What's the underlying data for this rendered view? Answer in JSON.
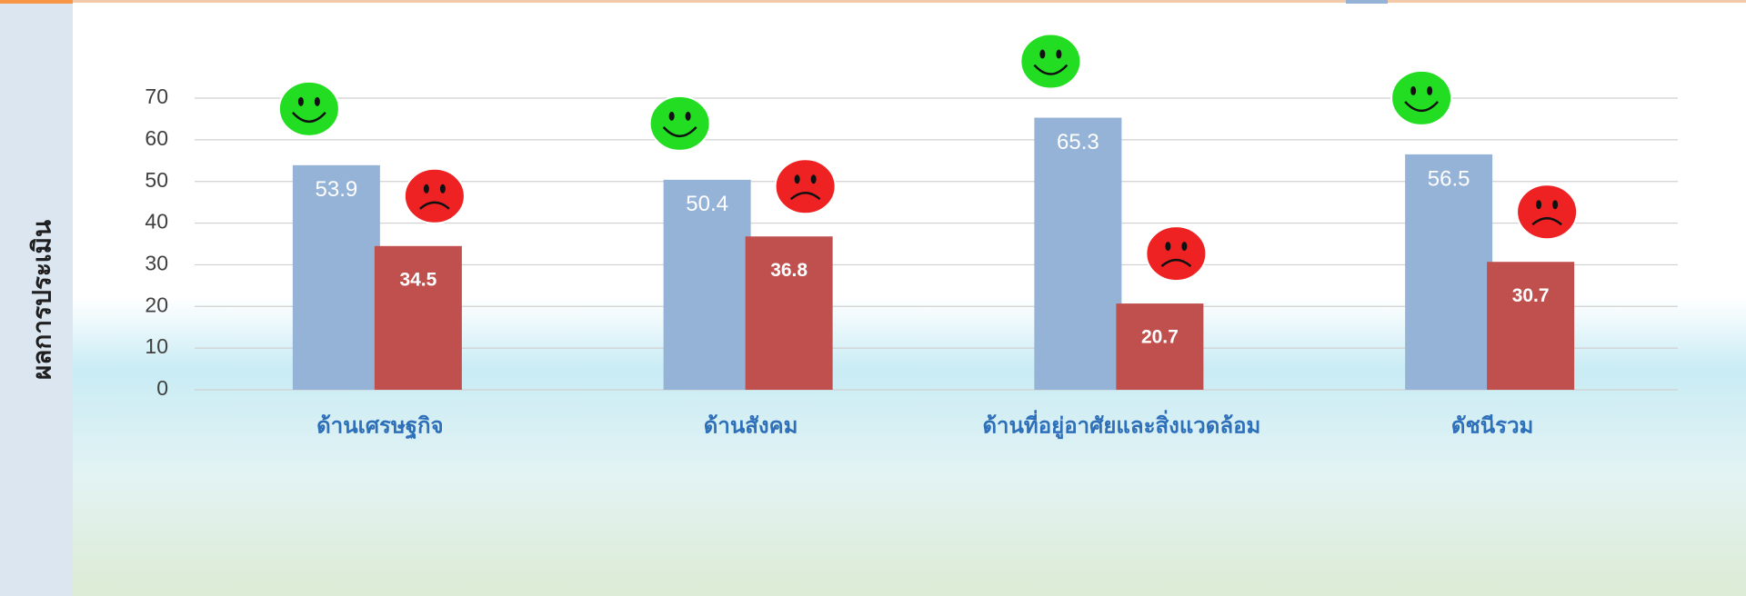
{
  "chart_data": {
    "type": "bar",
    "y_label": "ผลการประเมิน",
    "categories": [
      "ด้านเศรษฐกิจ",
      "ด้านสังคม",
      "ด้านที่อยู่อาศัยและสิ่งแวดล้อม",
      "ดัชนีรวม"
    ],
    "series": [
      {
        "color": "#95b3d7",
        "values": [
          53.9,
          50.4,
          65.3,
          56.5
        ]
      },
      {
        "color": "#c0504d",
        "values": [
          34.5,
          36.8,
          20.7,
          30.7
        ]
      }
    ],
    "ylim": [
      0,
      70
    ],
    "yticks": [
      0,
      10,
      20,
      30,
      40,
      50,
      60,
      70
    ],
    "grid": true
  }
}
